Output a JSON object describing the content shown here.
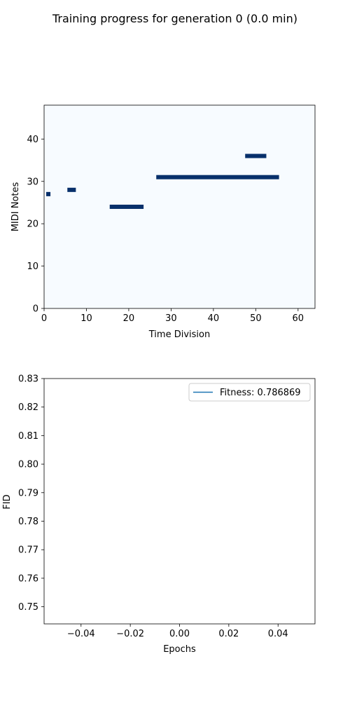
{
  "suptitle": "Training progress for generation 0 (0.0 min)",
  "chart_data": [
    {
      "type": "heatmap",
      "xlabel": "Time Division",
      "ylabel": "MIDI Notes",
      "xlim": [
        0,
        64
      ],
      "ylim": [
        0,
        48
      ],
      "xticks": [
        0,
        10,
        20,
        30,
        40,
        50,
        60
      ],
      "yticks": [
        0,
        10,
        20,
        30,
        40
      ],
      "grid": false,
      "colors": {
        "background": "#f7fbff",
        "note": "#08306b"
      },
      "notes": [
        {
          "pitch": 27,
          "start": 0.5,
          "end": 1.5
        },
        {
          "pitch": 28,
          "start": 5.5,
          "end": 7.5
        },
        {
          "pitch": 24,
          "start": 15.5,
          "end": 23.5
        },
        {
          "pitch": 31,
          "start": 26.5,
          "end": 55.5
        },
        {
          "pitch": 36,
          "start": 47.5,
          "end": 52.5
        }
      ]
    },
    {
      "type": "line",
      "xlabel": "Epochs",
      "ylabel": "FID",
      "xlim": [
        -0.055,
        0.055
      ],
      "ylim": [
        0.744,
        0.83
      ],
      "xticks": [
        -0.04,
        -0.02,
        0.0,
        0.02,
        0.04
      ],
      "xtick_labels": [
        "−0.04",
        "−0.02",
        "0.00",
        "0.02",
        "0.04"
      ],
      "yticks": [
        0.75,
        0.76,
        0.77,
        0.78,
        0.79,
        0.8,
        0.81,
        0.82,
        0.83
      ],
      "ytick_labels": [
        "0.75",
        "0.76",
        "0.77",
        "0.78",
        "0.79",
        "0.80",
        "0.81",
        "0.82",
        "0.83"
      ],
      "grid": false,
      "legend_position": "upper right",
      "series": [
        {
          "name": "Fitness: 0.786869",
          "color": "#1f77b4",
          "x": [
            0
          ],
          "y": [
            0.786869
          ]
        }
      ]
    }
  ]
}
